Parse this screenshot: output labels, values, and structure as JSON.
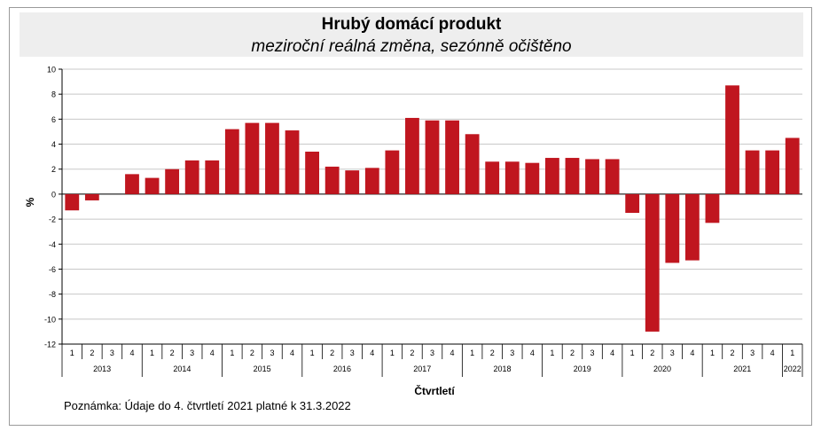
{
  "title": "Hrubý domácí produkt",
  "subtitle": "meziroční reálná změna, sezónně očištěno",
  "note": "Poznámka: Údaje do 4. čtvrtletí 2021 platné k 31.3.2022",
  "colors": {
    "bar": "#c0161f",
    "grid": "#c8c8c8",
    "axis": "#000000",
    "title_band": "#eeeeee"
  },
  "chart_data": {
    "type": "bar",
    "title": "Hrubý domácí produkt",
    "subtitle": "meziroční reálná změna, sezónně očištěno",
    "xlabel": "Čtvrtletí",
    "ylabel": "%",
    "ylim": [
      -12,
      10
    ],
    "yticks": [
      -12,
      -10,
      -8,
      -6,
      -4,
      -2,
      0,
      2,
      4,
      6,
      8,
      10
    ],
    "grid": true,
    "legend": "none",
    "categories": [
      "1",
      "2",
      "3",
      "4",
      "1",
      "2",
      "3",
      "4",
      "1",
      "2",
      "3",
      "4",
      "1",
      "2",
      "3",
      "4",
      "1",
      "2",
      "3",
      "4",
      "1",
      "2",
      "3",
      "4",
      "1",
      "2",
      "3",
      "4",
      "1",
      "2",
      "3",
      "4",
      "1",
      "2",
      "3",
      "4",
      "1"
    ],
    "years": [
      {
        "label": "2013",
        "count": 4
      },
      {
        "label": "2014",
        "count": 4
      },
      {
        "label": "2015",
        "count": 4
      },
      {
        "label": "2016",
        "count": 4
      },
      {
        "label": "2017",
        "count": 4
      },
      {
        "label": "2018",
        "count": 4
      },
      {
        "label": "2019",
        "count": 4
      },
      {
        "label": "2020",
        "count": 4
      },
      {
        "label": "2021",
        "count": 4
      },
      {
        "label": "2022",
        "count": 1
      }
    ],
    "values": [
      -1.3,
      -0.5,
      0.0,
      1.6,
      1.3,
      2.0,
      2.7,
      2.7,
      5.2,
      5.7,
      5.7,
      5.1,
      3.4,
      2.2,
      1.9,
      2.1,
      3.5,
      6.1,
      5.9,
      5.9,
      4.8,
      2.6,
      2.6,
      2.5,
      2.9,
      2.9,
      2.8,
      2.8,
      -1.5,
      -11.0,
      -5.5,
      -5.3,
      -2.3,
      8.7,
      3.5,
      3.5,
      4.5
    ]
  }
}
